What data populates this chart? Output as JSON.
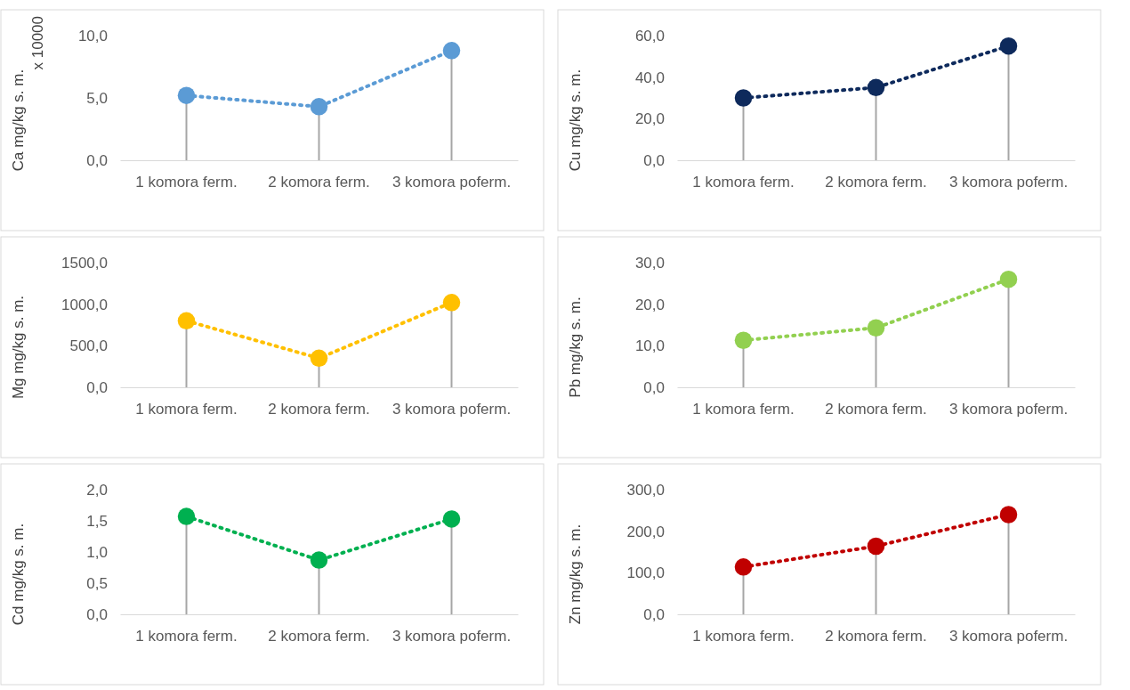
{
  "chart_data": [
    {
      "type": "lollipop",
      "ylabel": "Ca mg/kg s. m.",
      "annotations": [
        "x 10000"
      ],
      "categories": [
        "1 komora ferm.",
        "2 komora ferm.",
        "3 komora poferm."
      ],
      "series": [
        {
          "type": "line",
          "color": "#5b9bd5",
          "marker": "none",
          "line_style": "dotted",
          "values": [
            5.2,
            4.3,
            8.8
          ]
        },
        {
          "type": "lollipop",
          "color": "#5b9bd5",
          "marker": "circle",
          "values": [
            5.2,
            4.3,
            8.8
          ]
        }
      ],
      "ylim": [
        0,
        10
      ],
      "yticks": [
        {
          "value": 0,
          "label": "0,0"
        },
        {
          "value": 5,
          "label": "5,0"
        },
        {
          "value": 10,
          "label": "10,0"
        }
      ]
    },
    {
      "type": "lollipop",
      "ylabel": "Cu mg/kg s. m.",
      "categories": [
        "1 komora ferm.",
        "2 komora ferm.",
        "3 komora poferm."
      ],
      "series": [
        {
          "type": "line",
          "color": "#0e2a5c",
          "marker": "none",
          "line_style": "dotted",
          "values": [
            30,
            35,
            55
          ]
        },
        {
          "type": "lollipop",
          "color": "#0e2a5c",
          "marker": "circle",
          "values": [
            30,
            35,
            55
          ]
        }
      ],
      "ylim": [
        0,
        60
      ],
      "yticks": [
        {
          "value": 0,
          "label": "0,0"
        },
        {
          "value": 20,
          "label": "20,0"
        },
        {
          "value": 40,
          "label": "40,0"
        },
        {
          "value": 60,
          "label": "60,0"
        }
      ]
    },
    {
      "type": "lollipop",
      "ylabel": "Mg  mg/kg s. m.",
      "categories": [
        "1 komora ferm.",
        "2 komora ferm.",
        "3 komora poferm."
      ],
      "series": [
        {
          "type": "line",
          "color": "#ffc000",
          "marker": "none",
          "line_style": "dotted",
          "values": [
            800,
            350,
            1020
          ]
        },
        {
          "type": "lollipop",
          "color": "#ffc000",
          "marker": "circle",
          "values": [
            800,
            350,
            1020
          ]
        }
      ],
      "ylim": [
        0,
        1500
      ],
      "yticks": [
        {
          "value": 0,
          "label": "0,0"
        },
        {
          "value": 500,
          "label": "500,0"
        },
        {
          "value": 1000,
          "label": "1000,0"
        },
        {
          "value": 1500,
          "label": "1500,0"
        }
      ]
    },
    {
      "type": "lollipop",
      "ylabel": "Pb mg/kg s. m.",
      "categories": [
        "1 komora ferm.",
        "2 komora ferm.",
        "3 komora poferm."
      ],
      "series": [
        {
          "type": "line",
          "color": "#92d050",
          "marker": "none",
          "line_style": "dotted",
          "values": [
            11.3,
            14.3,
            26
          ]
        },
        {
          "type": "lollipop",
          "color": "#92d050",
          "marker": "circle",
          "values": [
            11.3,
            14.3,
            26
          ]
        }
      ],
      "ylim": [
        0,
        30
      ],
      "yticks": [
        {
          "value": 0,
          "label": "0,0"
        },
        {
          "value": 10,
          "label": "10,0"
        },
        {
          "value": 20,
          "label": "20,0"
        },
        {
          "value": 30,
          "label": "30,0"
        }
      ]
    },
    {
      "type": "lollipop",
      "ylabel": "Cd mg/kg s. m.",
      "categories": [
        "1 komora ferm.",
        "2 komora ferm.",
        "3 komora poferm."
      ],
      "series": [
        {
          "type": "line",
          "color": "#00b050",
          "marker": "none",
          "line_style": "dotted",
          "values": [
            1.57,
            0.87,
            1.53
          ]
        },
        {
          "type": "lollipop",
          "color": "#00b050",
          "marker": "circle",
          "values": [
            1.57,
            0.87,
            1.53
          ]
        }
      ],
      "ylim": [
        0,
        2
      ],
      "yticks": [
        {
          "value": 0,
          "label": "0,0"
        },
        {
          "value": 0.5,
          "label": "0,5"
        },
        {
          "value": 1,
          "label": "1,0"
        },
        {
          "value": 1.5,
          "label": "1,5"
        },
        {
          "value": 2,
          "label": "2,0"
        }
      ]
    },
    {
      "type": "lollipop",
      "ylabel": "Zn mg/kg s. m.",
      "categories": [
        "1 komora ferm.",
        "2 komora ferm.",
        "3 komora poferm."
      ],
      "series": [
        {
          "type": "line",
          "color": "#c00000",
          "marker": "none",
          "line_style": "dotted",
          "values": [
            114,
            164,
            240
          ]
        },
        {
          "type": "lollipop",
          "color": "#c00000",
          "marker": "circle",
          "values": [
            114,
            164,
            240
          ]
        }
      ],
      "ylim": [
        0,
        300
      ],
      "yticks": [
        {
          "value": 0,
          "label": "0,0"
        },
        {
          "value": 100,
          "label": "100,0"
        },
        {
          "value": 200,
          "label": "200,0"
        },
        {
          "value": 300,
          "label": "300,0"
        }
      ]
    }
  ]
}
